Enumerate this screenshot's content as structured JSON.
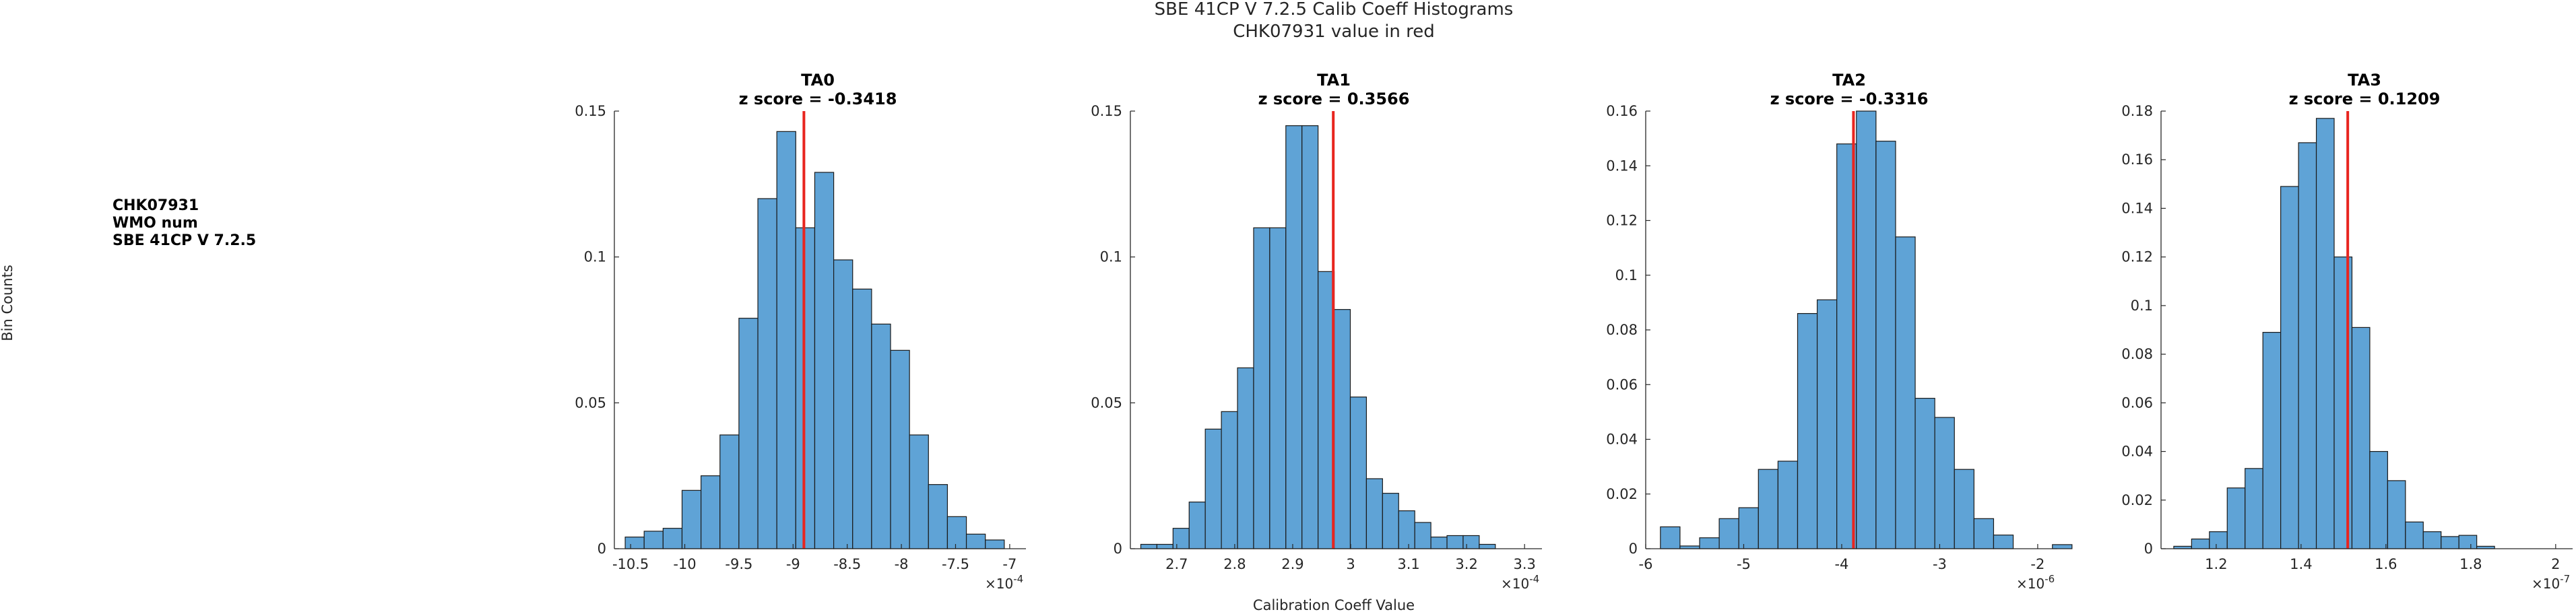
{
  "figure": {
    "title_line1": "SBE 41CP V 7.2.5 Calib Coeff Histograms",
    "title_line2": "CHK07931 value in red",
    "ylabel": "Bin Counts",
    "xlabel": "Calibration Coeff Value",
    "info_lines": [
      "CHK07931",
      "WMO num",
      "SBE 41CP V 7.2.5"
    ]
  },
  "colors": {
    "bar": "#5fa3d6",
    "bar_edge": "#1a1a1a",
    "marker": "#e8251f",
    "axis": "#262626"
  },
  "chart_data": [
    {
      "type": "bar",
      "name": "TA0",
      "title": "TA0",
      "subtitle": "z score = -0.3418",
      "exponent_label": "×10",
      "exponent_power": "-4",
      "xlim": [
        -10.65,
        -6.85
      ],
      "ylim": [
        0,
        0.15
      ],
      "xticks": [
        -10.5,
        -10,
        -9.5,
        -9,
        -8.5,
        -8,
        -7.5,
        -7
      ],
      "xticklabels": [
        "-10.5",
        "-10",
        "-9.5",
        "-9",
        "-8.5",
        "-8",
        "-7.5",
        "-7"
      ],
      "yticks": [
        0,
        0.05,
        0.1,
        0.15
      ],
      "yticklabels": [
        "0",
        "0.05",
        "0.1",
        "0.15"
      ],
      "bin_start": -10.55,
      "bin_width": 0.175,
      "values": [
        0.004,
        0.006,
        0.007,
        0.02,
        0.025,
        0.039,
        0.079,
        0.12,
        0.143,
        0.11,
        0.129,
        0.099,
        0.089,
        0.077,
        0.068,
        0.039,
        0.022,
        0.011,
        0.005,
        0.003
      ],
      "marker_value": -8.9
    },
    {
      "type": "bar",
      "name": "TA1",
      "title": "TA1",
      "subtitle": "z score = 0.3566",
      "exponent_label": "×10",
      "exponent_power": "-4",
      "xlim": [
        2.62,
        3.33
      ],
      "ylim": [
        0,
        0.15
      ],
      "xticks": [
        2.7,
        2.8,
        2.9,
        3,
        3.1,
        3.2,
        3.3
      ],
      "xticklabels": [
        "2.7",
        "2.8",
        "2.9",
        "3",
        "3.1",
        "3.2",
        "3.3"
      ],
      "yticks": [
        0,
        0.05,
        0.1,
        0.15
      ],
      "yticklabels": [
        "0",
        "0.05",
        "0.1",
        "0.15"
      ],
      "bin_start": 2.638,
      "bin_width": 0.0278,
      "values": [
        0.0015,
        0.0015,
        0.007,
        0.016,
        0.041,
        0.047,
        0.062,
        0.11,
        0.11,
        0.145,
        0.145,
        0.095,
        0.082,
        0.052,
        0.024,
        0.019,
        0.013,
        0.009,
        0.004,
        0.0045,
        0.0045,
        0.0015
      ],
      "marker_value": 2.97
    },
    {
      "type": "bar",
      "name": "TA2",
      "title": "TA2",
      "subtitle": "z score = -0.3316",
      "exponent_label": "×10",
      "exponent_power": "-6",
      "xlim": [
        -6,
        -1.8
      ],
      "ylim": [
        0,
        0.16
      ],
      "xticks": [
        -6,
        -5,
        -4,
        -3,
        -2
      ],
      "xticklabels": [
        "-6",
        "-5",
        "-4",
        "-3",
        "-2"
      ],
      "yticks": [
        0,
        0.02,
        0.04,
        0.06,
        0.08,
        0.1,
        0.12,
        0.14,
        0.16
      ],
      "yticklabels": [
        "0",
        "0.02",
        "0.04",
        "0.06",
        "0.08",
        "0.1",
        "0.12",
        "0.14",
        "0.16"
      ],
      "bin_start": -5.85,
      "bin_width": 0.2,
      "values": [
        0.008,
        0.001,
        0.004,
        0.011,
        0.015,
        0.029,
        0.032,
        0.086,
        0.091,
        0.148,
        0.16,
        0.149,
        0.114,
        0.055,
        0.048,
        0.029,
        0.011,
        0.005,
        0.0,
        0.0,
        0.0015
      ],
      "marker_value": -3.88
    },
    {
      "type": "bar",
      "name": "TA3",
      "title": "TA3",
      "subtitle": "z score = 0.1209",
      "exponent_label": "×10",
      "exponent_power": "-7",
      "xlim": [
        1.07,
        2.04
      ],
      "ylim": [
        0,
        0.18
      ],
      "xticks": [
        1.2,
        1.4,
        1.6,
        1.8,
        2
      ],
      "xticklabels": [
        "1.2",
        "1.4",
        "1.6",
        "1.8",
        "2"
      ],
      "yticks": [
        0,
        0.02,
        0.04,
        0.06,
        0.08,
        0.1,
        0.12,
        0.14,
        0.16,
        0.18
      ],
      "yticklabels": [
        "0",
        "0.02",
        "0.04",
        "0.06",
        "0.08",
        "0.1",
        "0.12",
        "0.14",
        "0.16",
        "0.18"
      ],
      "bin_start": 1.1,
      "bin_width": 0.042,
      "values": [
        0.001,
        0.004,
        0.007,
        0.025,
        0.033,
        0.089,
        0.149,
        0.167,
        0.177,
        0.12,
        0.091,
        0.04,
        0.028,
        0.011,
        0.007,
        0.005,
        0.0055,
        0.001
      ],
      "marker_value": 1.51
    }
  ]
}
